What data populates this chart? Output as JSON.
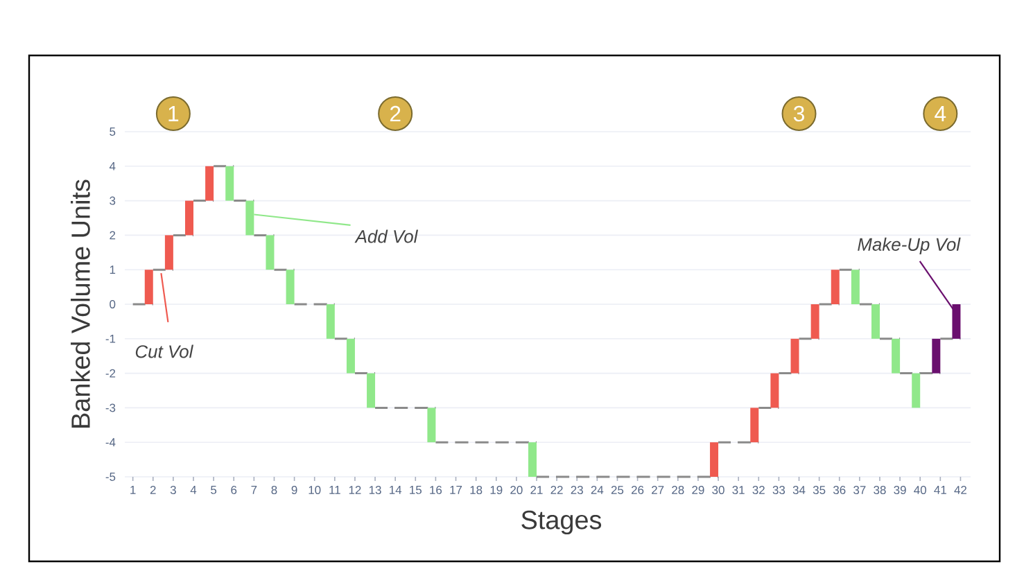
{
  "chart_data": {
    "type": "bar",
    "xlabel": "Stages",
    "ylabel": "Banked Volume Units",
    "x": [
      1,
      2,
      3,
      4,
      5,
      6,
      7,
      8,
      9,
      10,
      11,
      12,
      13,
      14,
      15,
      16,
      17,
      18,
      19,
      20,
      21,
      22,
      23,
      24,
      25,
      26,
      27,
      28,
      29,
      30,
      31,
      32,
      33,
      34,
      35,
      36,
      37,
      38,
      39,
      40,
      41,
      42
    ],
    "series": [
      {
        "type": "step",
        "color": "#8a8a8a",
        "line_style": "dashed",
        "values": [
          0,
          1,
          2,
          3,
          4,
          3,
          2,
          1,
          0,
          0,
          -1,
          -2,
          -3,
          -3,
          -3,
          -4,
          -4,
          -4,
          -4,
          -4,
          -5,
          -5,
          -5,
          -5,
          -5,
          -5,
          -5,
          -5,
          -5,
          -4,
          -4,
          -3,
          -2,
          -1,
          0,
          1,
          0,
          -1,
          -2,
          -2,
          -1,
          -1
        ]
      },
      {
        "color": "#ef5a50",
        "values": [
          null,
          1,
          1,
          1,
          1,
          null,
          null,
          null,
          null,
          null,
          null,
          null,
          null,
          null,
          null,
          null,
          null,
          null,
          null,
          null,
          null,
          null,
          null,
          null,
          null,
          null,
          null,
          null,
          null,
          1,
          null,
          1,
          1,
          1,
          1,
          1,
          null,
          null,
          null,
          null,
          null,
          null
        ],
        "base": [
          null,
          0,
          1,
          2,
          3,
          null,
          null,
          null,
          null,
          null,
          null,
          null,
          null,
          null,
          null,
          null,
          null,
          null,
          null,
          null,
          null,
          null,
          null,
          null,
          null,
          null,
          null,
          null,
          null,
          -5,
          null,
          -4,
          -3,
          -2,
          -1,
          0,
          null,
          null,
          null,
          null,
          null,
          null
        ]
      },
      {
        "color": "#90e88a",
        "values": [
          null,
          null,
          null,
          null,
          null,
          -1,
          -1,
          -1,
          -1,
          null,
          -1,
          -1,
          -1,
          null,
          null,
          -1,
          null,
          null,
          null,
          null,
          -1,
          null,
          null,
          null,
          null,
          null,
          null,
          null,
          null,
          null,
          null,
          null,
          null,
          null,
          null,
          null,
          -1,
          -1,
          -1,
          -1,
          null,
          null
        ],
        "base": [
          null,
          null,
          null,
          null,
          null,
          4,
          3,
          2,
          1,
          null,
          0,
          -1,
          -2,
          null,
          null,
          -3,
          null,
          null,
          null,
          null,
          -4,
          null,
          null,
          null,
          null,
          null,
          null,
          null,
          null,
          null,
          null,
          null,
          null,
          null,
          null,
          null,
          1,
          0,
          -1,
          -2,
          null,
          null
        ]
      },
      {
        "color": "#6a0f6e",
        "values": [
          null,
          null,
          null,
          null,
          null,
          null,
          null,
          null,
          null,
          null,
          null,
          null,
          null,
          null,
          null,
          null,
          null,
          null,
          null,
          null,
          null,
          null,
          null,
          null,
          null,
          null,
          null,
          null,
          null,
          null,
          null,
          null,
          null,
          null,
          null,
          null,
          null,
          null,
          null,
          null,
          1,
          1
        ],
        "base": [
          null,
          null,
          null,
          null,
          null,
          null,
          null,
          null,
          null,
          null,
          null,
          null,
          null,
          null,
          null,
          null,
          null,
          null,
          null,
          null,
          null,
          null,
          null,
          null,
          null,
          null,
          null,
          null,
          null,
          null,
          null,
          null,
          null,
          null,
          null,
          null,
          null,
          null,
          null,
          null,
          -2,
          -1
        ]
      }
    ],
    "xlim": [
      0.6,
      42.5
    ],
    "xticks": [
      1,
      2,
      3,
      4,
      5,
      6,
      7,
      8,
      9,
      10,
      11,
      12,
      13,
      14,
      15,
      16,
      17,
      18,
      19,
      20,
      21,
      22,
      23,
      24,
      25,
      26,
      27,
      28,
      29,
      30,
      31,
      32,
      33,
      34,
      35,
      36,
      37,
      38,
      39,
      40,
      41,
      42
    ],
    "ylim": [
      -5,
      5
    ],
    "yticks": [
      -5,
      -4,
      -3,
      -2,
      -1,
      0,
      1,
      2,
      3,
      4,
      5
    ],
    "grid": "y",
    "annotations": [
      {
        "text": "1",
        "x": 3
      },
      {
        "text": "2",
        "x": 14
      },
      {
        "text": "3",
        "x": 34
      },
      {
        "text": "4",
        "x": 41
      },
      {
        "text": "Cut Vol",
        "x": 2.4,
        "y": 0.9
      },
      {
        "text": "Add Vol",
        "x": 7,
        "y": 2.6
      },
      {
        "text": "Make-Up Vol",
        "x": 41.7,
        "y": -0.2
      }
    ]
  }
}
